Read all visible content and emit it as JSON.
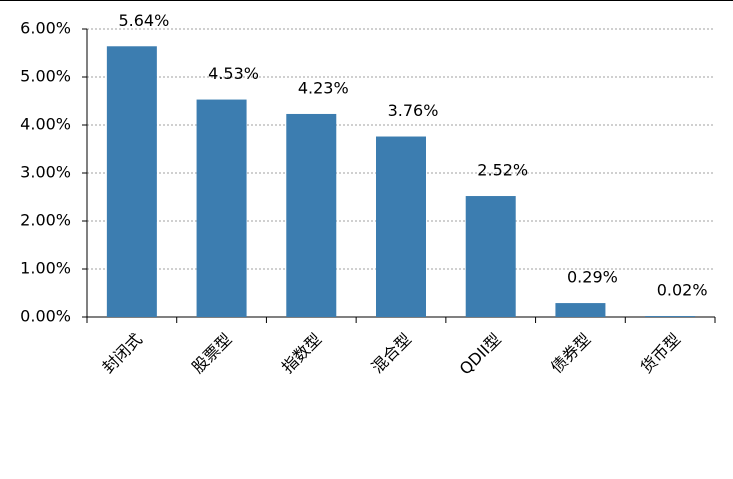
{
  "chart_data": {
    "type": "bar",
    "categories": [
      "封闭式",
      "股票型",
      "指数型",
      "混合型",
      "QDII型",
      "债券型",
      "货币型"
    ],
    "values": [
      5.64,
      4.53,
      4.23,
      3.76,
      2.52,
      0.29,
      0.02
    ],
    "value_labels": [
      "5.64%",
      "4.53%",
      "4.23%",
      "3.76%",
      "2.52%",
      "0.29%",
      "0.02%"
    ],
    "color": "#3c7db0",
    "ylim": [
      0,
      6
    ],
    "yticks": [
      {
        "value": 0,
        "label": "0.00%"
      },
      {
        "value": 1,
        "label": "1.00%"
      },
      {
        "value": 2,
        "label": "2.00%"
      },
      {
        "value": 3,
        "label": "3.00%"
      },
      {
        "value": 4,
        "label": "4.00%"
      },
      {
        "value": 5,
        "label": "5.00%"
      },
      {
        "value": 6,
        "label": "6.00%"
      }
    ],
    "grid": true
  }
}
